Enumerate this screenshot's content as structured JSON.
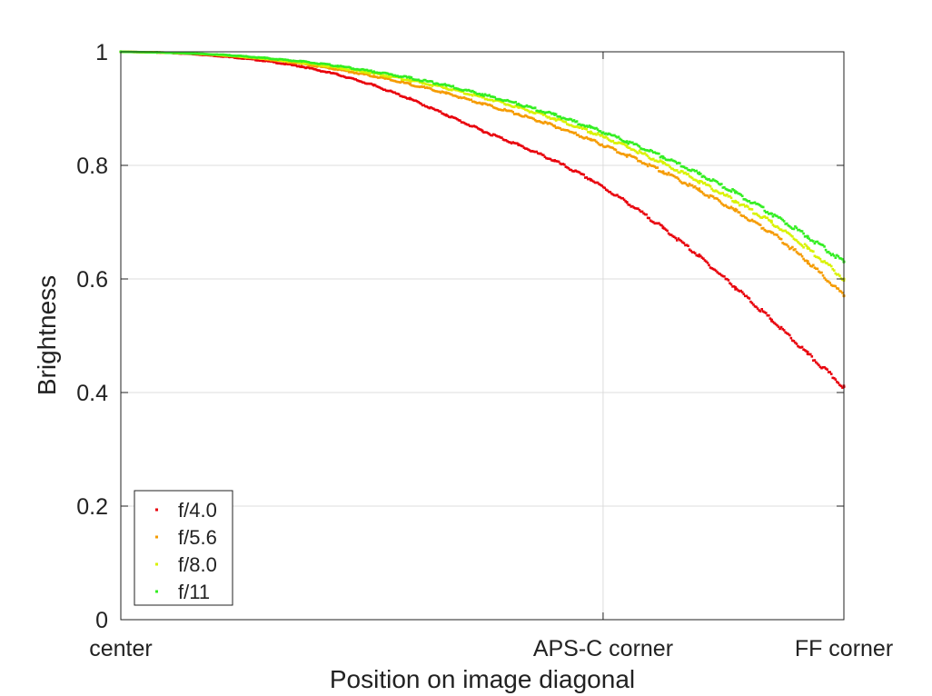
{
  "chart_data": {
    "type": "scatter",
    "title": "",
    "xlabel": "Position on image diagonal",
    "ylabel": "Brightness",
    "xlim": [
      0,
      1
    ],
    "ylim": [
      0,
      1
    ],
    "x_ticks": [
      {
        "value": 0,
        "label": "center"
      },
      {
        "value": 0.667,
        "label": "APS-C corner"
      },
      {
        "value": 1,
        "label": "FF corner"
      }
    ],
    "y_ticks": [
      {
        "value": 0,
        "label": "0"
      },
      {
        "value": 0.2,
        "label": "0.2"
      },
      {
        "value": 0.4,
        "label": "0.4"
      },
      {
        "value": 0.6,
        "label": "0.6"
      },
      {
        "value": 0.8,
        "label": "0.8"
      },
      {
        "value": 1,
        "label": "1"
      }
    ],
    "grid": true,
    "legend_position": "bottom-left",
    "series": [
      {
        "name": "f/4.0",
        "color": "#e8000b",
        "x": [
          0,
          0.05,
          0.1,
          0.15,
          0.2,
          0.25,
          0.3,
          0.35,
          0.4,
          0.45,
          0.5,
          0.55,
          0.6,
          0.65,
          0.7,
          0.75,
          0.8,
          0.85,
          0.9,
          0.95,
          1.0
        ],
        "y": [
          1.0,
          0.999,
          0.996,
          0.991,
          0.984,
          0.974,
          0.96,
          0.941,
          0.917,
          0.889,
          0.861,
          0.836,
          0.808,
          0.775,
          0.735,
          0.69,
          0.64,
          0.585,
          0.528,
          0.468,
          0.41
        ]
      },
      {
        "name": "f/5.6",
        "color": "#f59b00",
        "x": [
          0,
          0.05,
          0.1,
          0.15,
          0.2,
          0.25,
          0.3,
          0.35,
          0.4,
          0.45,
          0.5,
          0.55,
          0.6,
          0.65,
          0.7,
          0.75,
          0.8,
          0.85,
          0.9,
          0.95,
          1.0
        ],
        "y": [
          1.0,
          0.999,
          0.997,
          0.993,
          0.987,
          0.979,
          0.969,
          0.957,
          0.943,
          0.927,
          0.909,
          0.89,
          0.869,
          0.845,
          0.818,
          0.789,
          0.756,
          0.72,
          0.682,
          0.631,
          0.57
        ]
      },
      {
        "name": "f/8.0",
        "color": "#d9f200",
        "x": [
          0,
          0.05,
          0.1,
          0.15,
          0.2,
          0.25,
          0.3,
          0.35,
          0.4,
          0.45,
          0.5,
          0.55,
          0.6,
          0.65,
          0.7,
          0.75,
          0.8,
          0.85,
          0.9,
          0.95,
          1.0
        ],
        "y": [
          1.0,
          0.999,
          0.997,
          0.993,
          0.988,
          0.981,
          0.972,
          0.962,
          0.95,
          0.936,
          0.92,
          0.902,
          0.882,
          0.859,
          0.833,
          0.804,
          0.772,
          0.737,
          0.7,
          0.654,
          0.6
        ]
      },
      {
        "name": "f/11",
        "color": "#33ee22",
        "x": [
          0,
          0.05,
          0.1,
          0.15,
          0.2,
          0.25,
          0.3,
          0.35,
          0.4,
          0.45,
          0.5,
          0.55,
          0.6,
          0.65,
          0.7,
          0.75,
          0.8,
          0.85,
          0.9,
          0.95,
          1.0
        ],
        "y": [
          1.0,
          0.999,
          0.997,
          0.994,
          0.989,
          0.983,
          0.975,
          0.965,
          0.954,
          0.941,
          0.925,
          0.908,
          0.889,
          0.867,
          0.842,
          0.815,
          0.785,
          0.752,
          0.715,
          0.675,
          0.63
        ]
      }
    ]
  }
}
